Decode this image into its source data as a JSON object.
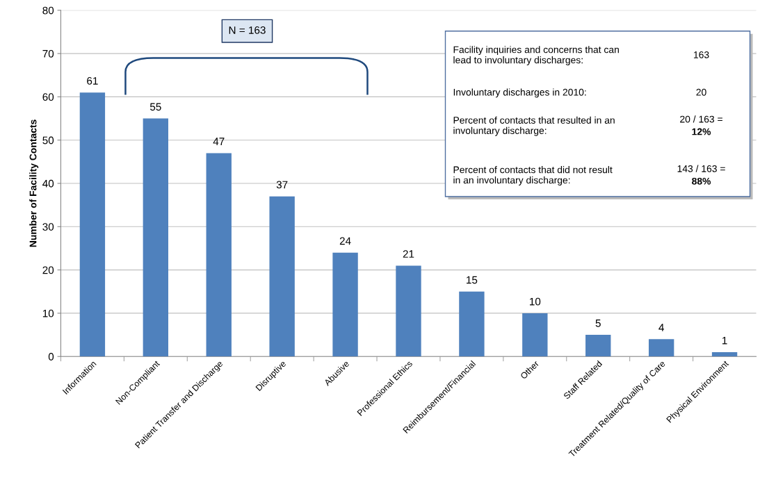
{
  "chart_data": {
    "type": "bar",
    "ylabel": "Number of Facility Contacts",
    "categories": [
      "Information",
      "Non-Compliant",
      "Patient Transfer and Discharge",
      "Disruptive",
      "Abusive",
      "Professional Ethics",
      "Reimbursement/Financial",
      "Other",
      "Staff Related",
      "Treatment Related/Quality of Care",
      "Physical Environment"
    ],
    "values": [
      61,
      55,
      47,
      37,
      24,
      21,
      15,
      10,
      5,
      4,
      1
    ],
    "color": "#4f81bd",
    "ylim": [
      0,
      80
    ],
    "yticks": [
      0,
      10,
      20,
      30,
      40,
      50,
      60,
      70,
      80
    ],
    "grid": "y",
    "data_labels": true,
    "legend": false,
    "annotations": [
      "N = 163",
      "Facility inquiries and concerns that can\nlead to involuntary discharges:",
      "163",
      "Involuntary discharges in 2010:",
      "20",
      "Percent of contacts that resulted in an\ninvoluntary discharge:",
      "20 / 163 =\n12%",
      "Percent of contacts that did not result\nin an involuntary discharge:",
      "143 / 163 =\n88%"
    ]
  }
}
